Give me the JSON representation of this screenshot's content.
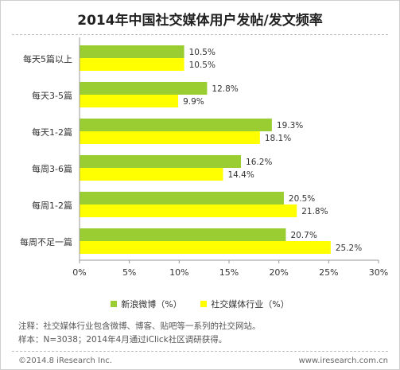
{
  "colors": {
    "series_a": "#9acd32",
    "series_b": "#ffff00",
    "axis": "#999999",
    "text": "#333333"
  },
  "notes": {
    "line1": "注释：社交媒体行业包含微博、博客、贴吧等一系列的社交网站。",
    "line2": "样本：N=3038；2014年4月通过iClick社区调研获得。"
  },
  "footer": {
    "copyright": "©2014.8 iResearch Inc.",
    "website": "www.iresearch.com.cn"
  },
  "chart_data": {
    "type": "bar",
    "orientation": "horizontal",
    "title": "2014年中国社交媒体用户发帖/发文频率",
    "categories": [
      "每天5篇以上",
      "每天3-5篇",
      "每天1-2篇",
      "每周3-6篇",
      "每周1-2篇",
      "每周不足一篇"
    ],
    "series": [
      {
        "name": "新浪微博（%）",
        "values": [
          10.5,
          12.8,
          19.3,
          16.2,
          20.5,
          20.7
        ]
      },
      {
        "name": "社交媒体行业（%）",
        "values": [
          10.5,
          9.9,
          18.1,
          14.4,
          21.8,
          25.2
        ]
      }
    ],
    "value_labels": [
      [
        "10.5%",
        "12.8%",
        "19.3%",
        "16.2%",
        "20.5%",
        "20.7%"
      ],
      [
        "10.5%",
        "9.9%",
        "18.1%",
        "14.4%",
        "21.8%",
        "25.2%"
      ]
    ],
    "xlim": [
      0,
      30
    ],
    "xticks": [
      0,
      5,
      10,
      15,
      20,
      25,
      30
    ],
    "xtick_labels": [
      "0%",
      "5%",
      "10%",
      "15%",
      "20%",
      "25%",
      "30%"
    ],
    "grid": false,
    "legend_position": "bottom"
  }
}
